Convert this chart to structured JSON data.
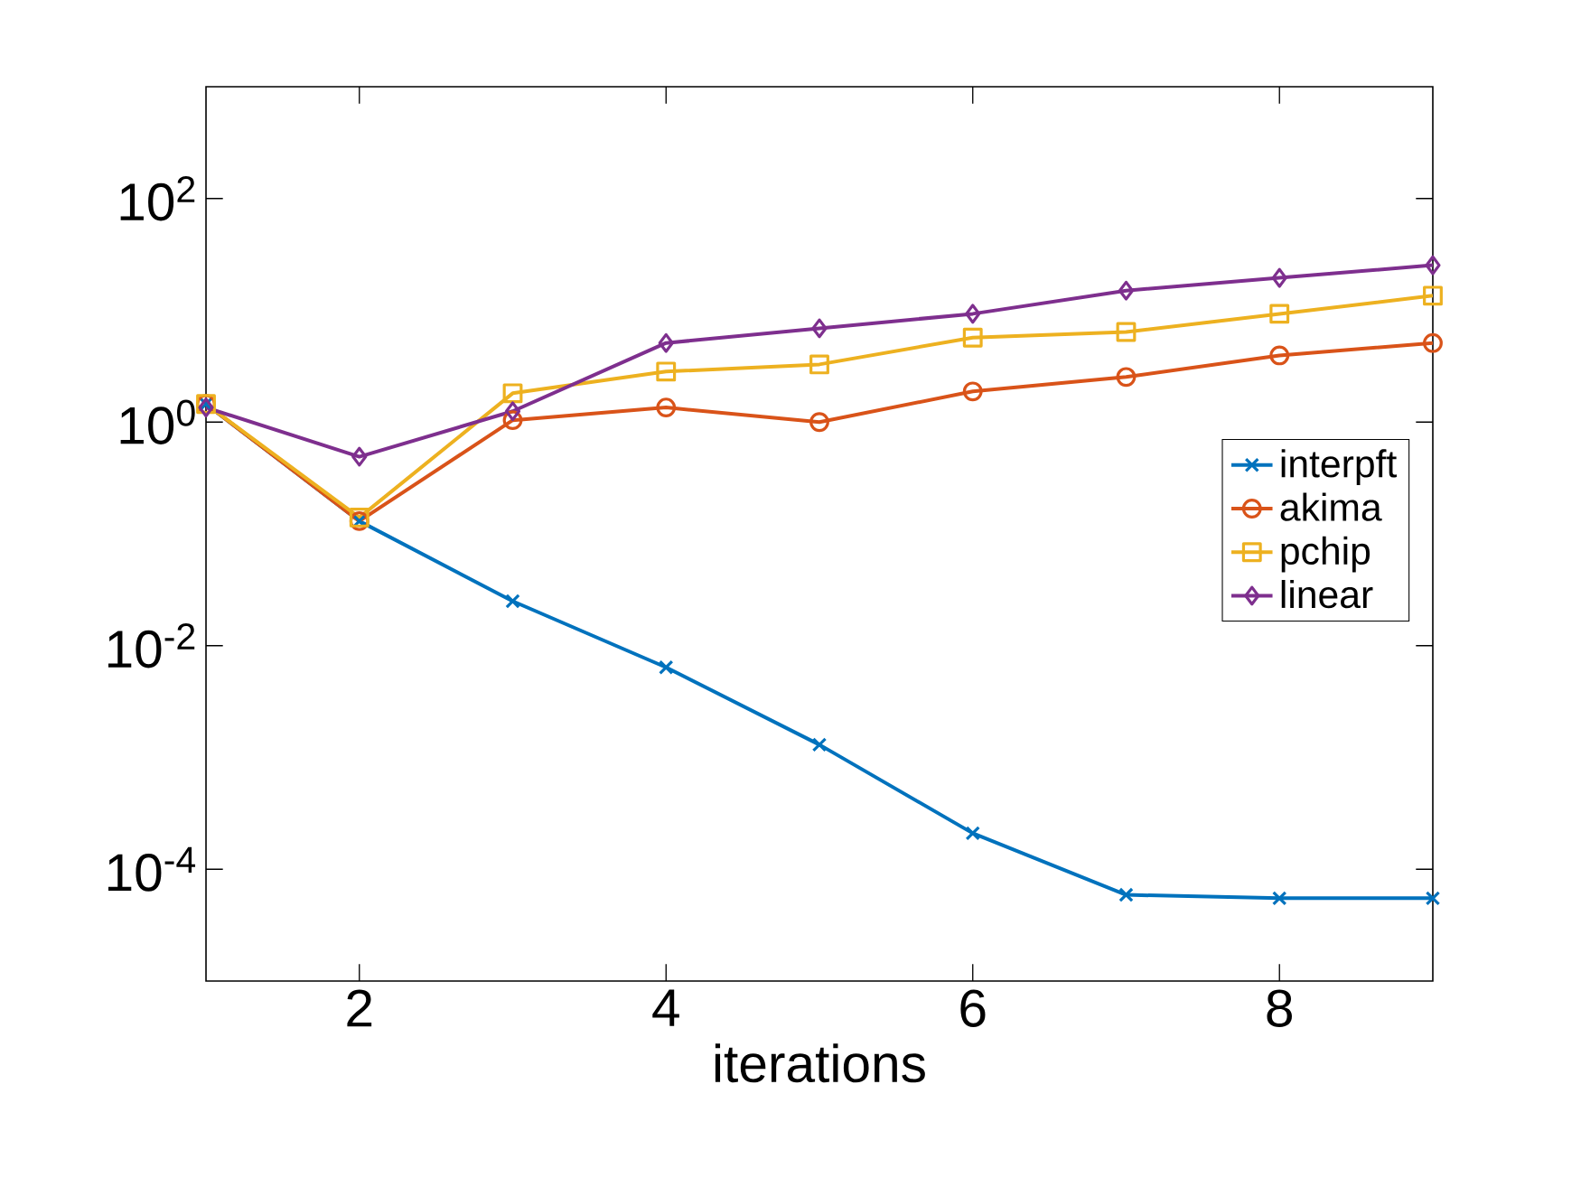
{
  "chart_data": {
    "type": "line",
    "xlabel": "iterations",
    "x": [
      1,
      2,
      3,
      4,
      5,
      6,
      7,
      8,
      9
    ],
    "series": [
      {
        "name": "interpft",
        "color": "#0072bd",
        "marker": "cross",
        "values": [
          1.45,
          0.13,
          0.025,
          0.0064,
          0.0013,
          0.00021,
          5.9e-05,
          5.5e-05,
          5.5e-05
        ]
      },
      {
        "name": "akima",
        "color": "#d95319",
        "marker": "circle",
        "values": [
          1.45,
          0.13,
          1.04,
          1.35,
          1.0,
          1.88,
          2.53,
          3.95,
          5.1
        ]
      },
      {
        "name": "pchip",
        "color": "#edb120",
        "marker": "square",
        "values": [
          1.45,
          0.14,
          1.81,
          2.83,
          3.28,
          5.7,
          6.4,
          9.3,
          13.5
        ]
      },
      {
        "name": "linear",
        "color": "#7e2f8e",
        "marker": "diamond",
        "values": [
          1.35,
          0.49,
          1.25,
          5.1,
          6.9,
          9.3,
          15,
          19.5,
          25.3
        ]
      }
    ],
    "log": "y",
    "grid": false,
    "legend": "right",
    "line_style": "solid",
    "xlim": [
      1,
      9
    ],
    "ylim": [
      1e-05,
      1000
    ],
    "xticks": [
      2,
      4,
      6,
      8
    ],
    "yticks": [
      {
        "value": 0.0001,
        "label": "10$^{-4}$"
      },
      {
        "value": 0.01,
        "label": "10$^{-2}$"
      },
      {
        "value": 1,
        "label": "10$^{0}$"
      },
      {
        "value": 100,
        "label": "10$^{2}$"
      }
    ]
  }
}
